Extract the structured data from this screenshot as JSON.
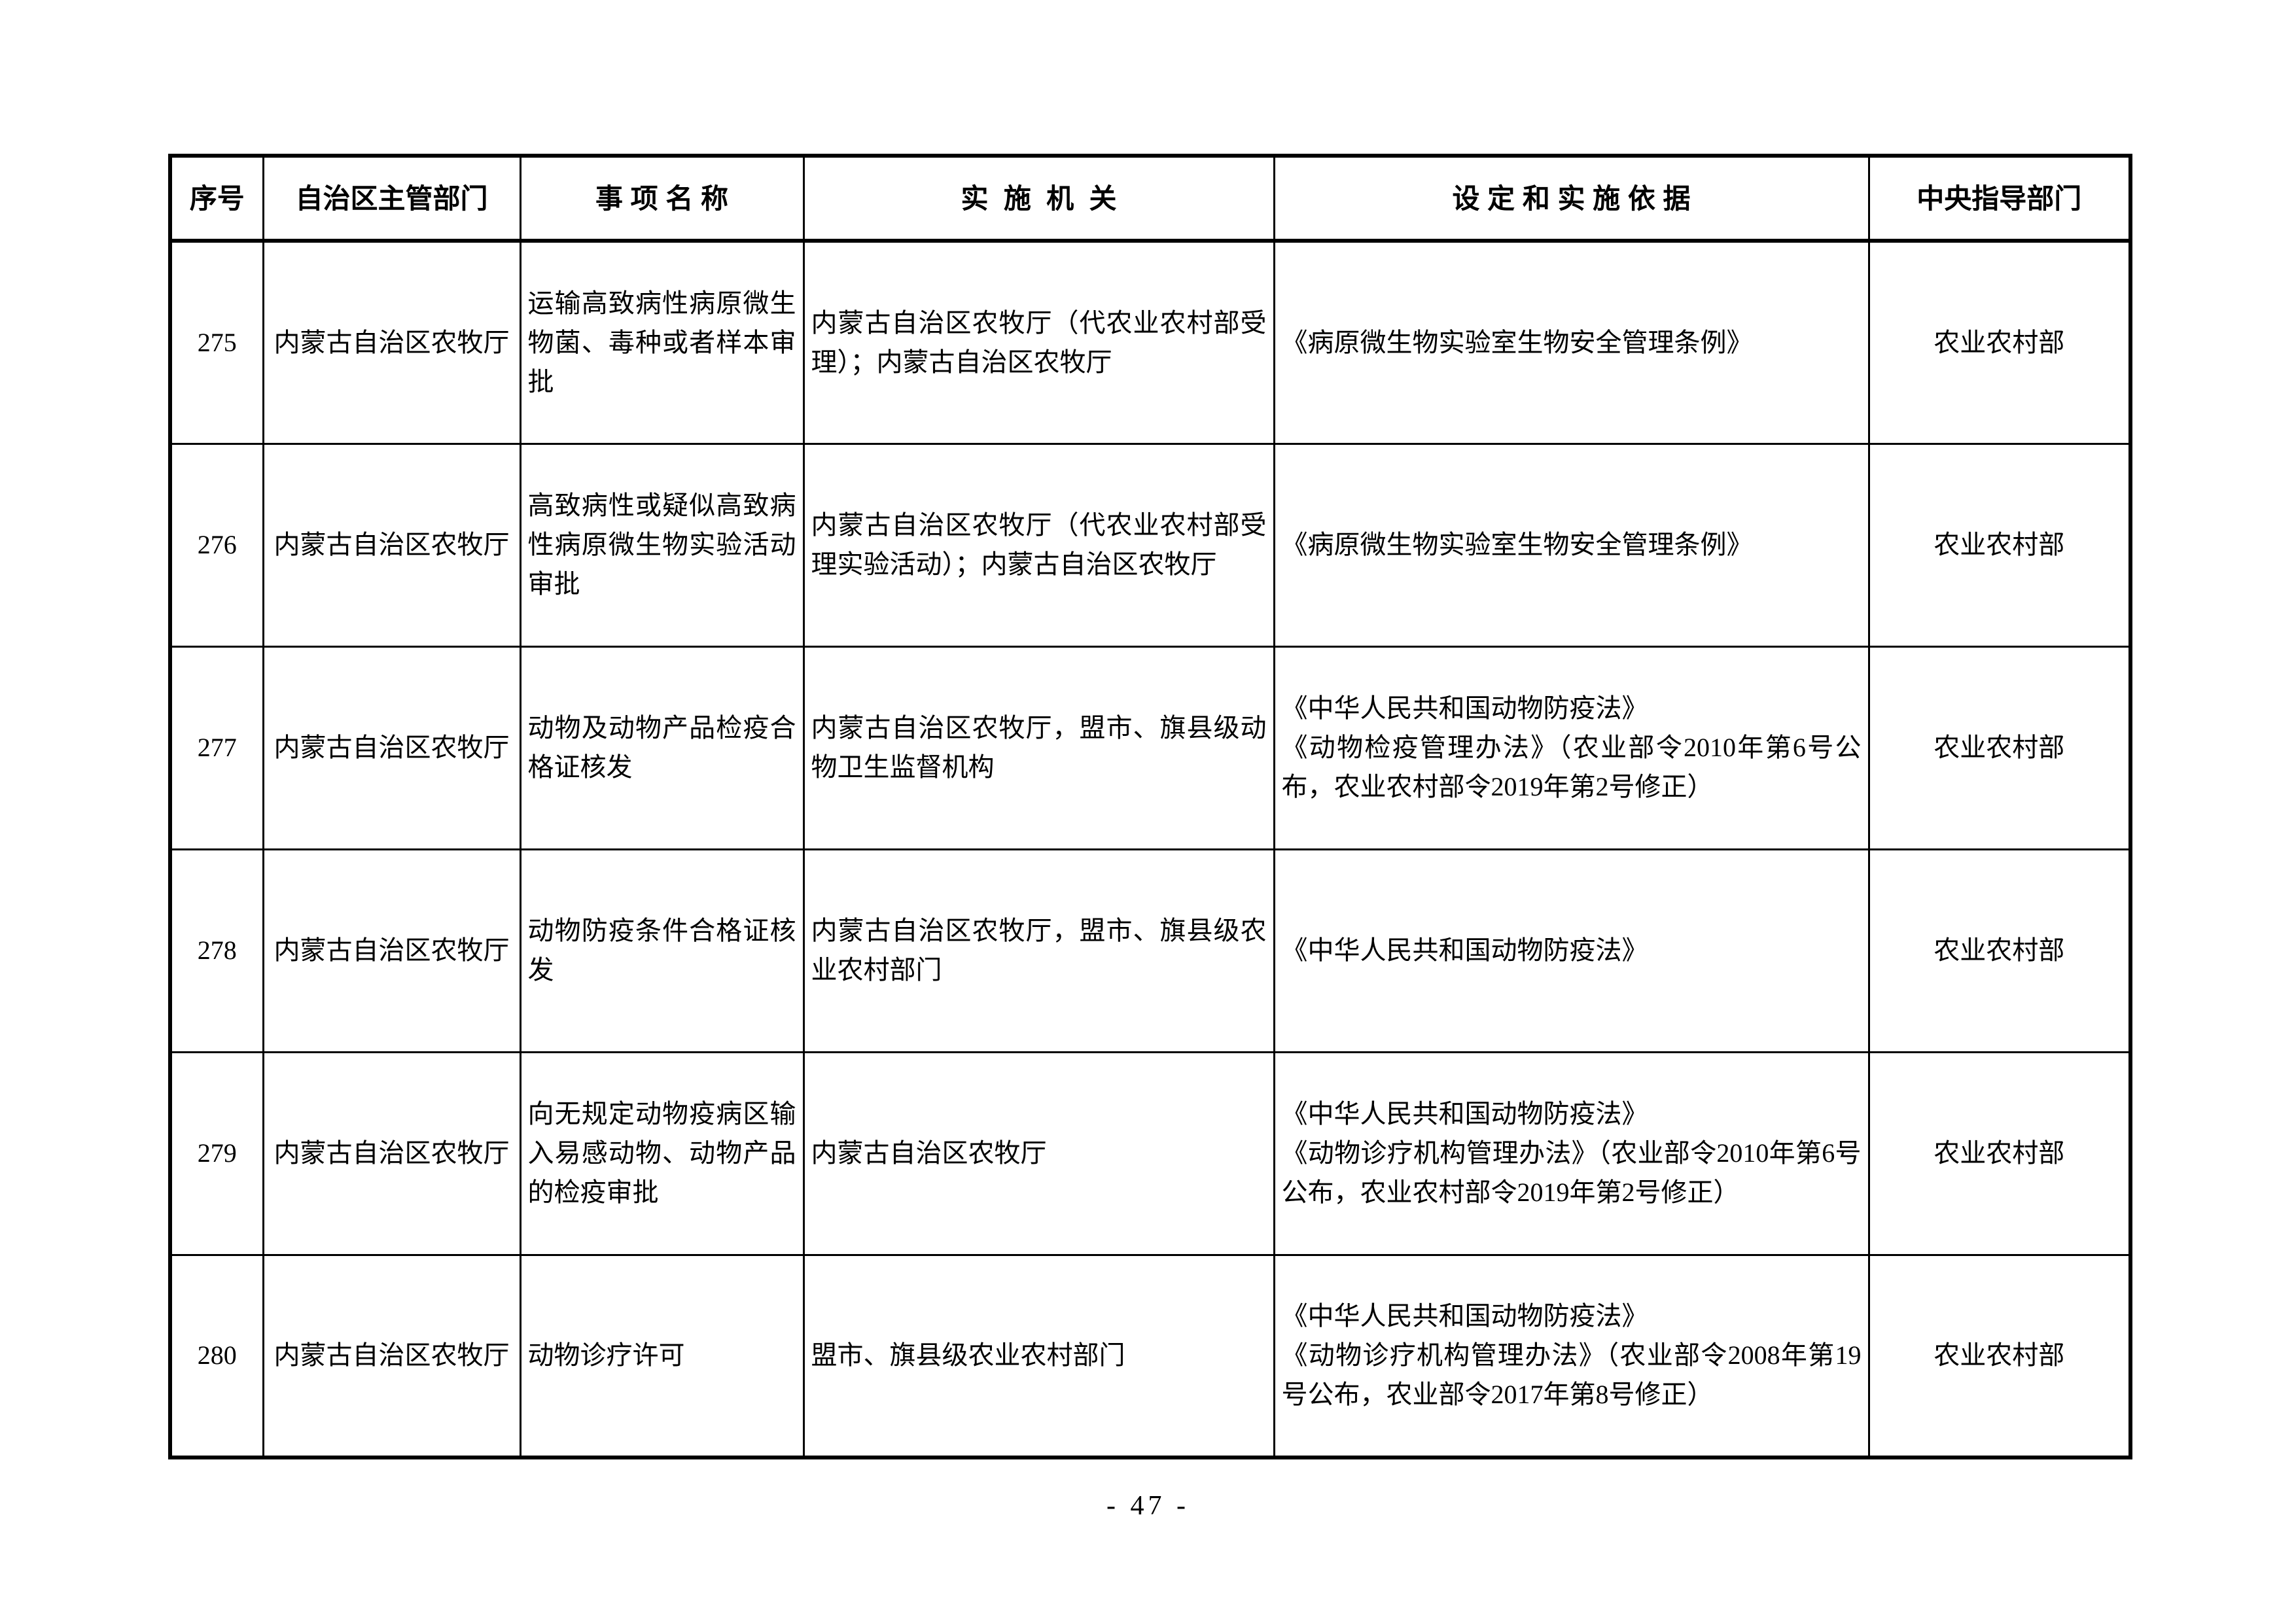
{
  "table": {
    "headers": [
      "序号",
      "自治区主管部门",
      "事 项 名 称",
      "实  施  机  关",
      "设 定 和 实 施 依 据",
      "中央指导部门"
    ],
    "rows": [
      {
        "no": "275",
        "dept": "内蒙古自治区农牧厅",
        "item": "运输高致病性病原微生物菌、毒种或者样本审批",
        "agency": "内蒙古自治区农牧厅（代农业农村部受理）；内蒙古自治区农牧厅",
        "basis": [
          "《病原微生物实验室生物安全管理条例》"
        ],
        "central": "农业农村部"
      },
      {
        "no": "276",
        "dept": "内蒙古自治区农牧厅",
        "item": "高致病性或疑似高致病性病原微生物实验活动审批",
        "agency": "内蒙古自治区农牧厅（代农业农村部受理实验活动）；内蒙古自治区农牧厅",
        "basis": [
          "《病原微生物实验室生物安全管理条例》"
        ],
        "central": "农业农村部"
      },
      {
        "no": "277",
        "dept": "内蒙古自治区农牧厅",
        "item": "动物及动物产品检疫合格证核发",
        "agency": "内蒙古自治区农牧厅，盟市、旗县级动物卫生监督机构",
        "basis": [
          "《中华人民共和国动物防疫法》",
          "《动物检疫管理办法》（农业部令2010年第6号公布，农业农村部令2019年第2号修正）"
        ],
        "central": "农业农村部"
      },
      {
        "no": "278",
        "dept": "内蒙古自治区农牧厅",
        "item": "动物防疫条件合格证核发",
        "agency": "内蒙古自治区农牧厅，盟市、旗县级农业农村部门",
        "basis": [
          "《中华人民共和国动物防疫法》"
        ],
        "central": "农业农村部"
      },
      {
        "no": "279",
        "dept": "内蒙古自治区农牧厅",
        "item": "向无规定动物疫病区输入易感动物、动物产品的检疫审批",
        "agency": "内蒙古自治区农牧厅",
        "basis": [
          "《中华人民共和国动物防疫法》",
          "《动物诊疗机构管理办法》（农业部令2010年第6号公布，农业农村部令2019年第2号修正）"
        ],
        "central": "农业农村部"
      },
      {
        "no": "280",
        "dept": "内蒙古自治区农牧厅",
        "item": "动物诊疗许可",
        "agency": "盟市、旗县级农业农村部门",
        "basis": [
          "《中华人民共和国动物防疫法》",
          "《动物诊疗机构管理办法》（农业部令2008年第19号公布，农业部令2017年第8号修正）"
        ],
        "central": "农业农村部"
      }
    ]
  },
  "footer": {
    "page_label": "- 47 -"
  }
}
